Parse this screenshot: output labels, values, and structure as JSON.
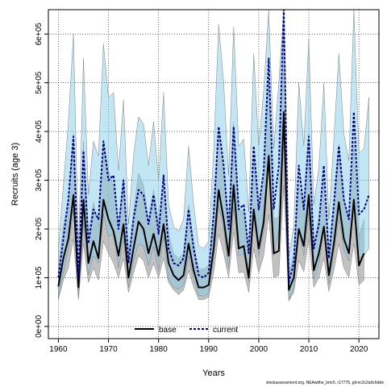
{
  "chart_data": {
    "type": "line",
    "title": "",
    "xlabel": "Years",
    "ylabel": "Recruits (age 3)",
    "xlim": [
      1958,
      2024
    ],
    "ylim": [
      -25000,
      650000
    ],
    "x_ticks": [
      1960,
      1970,
      1980,
      1990,
      2000,
      2010,
      2020
    ],
    "y_ticks": [
      0,
      100000,
      200000,
      300000,
      400000,
      500000,
      600000
    ],
    "y_tick_labels": [
      "0e+00",
      "1e+05",
      "2e+05",
      "3e+05",
      "4e+05",
      "5e+05",
      "6e+05"
    ],
    "grid": true,
    "legend": {
      "position": "bottom-center",
      "items": [
        "base",
        "current"
      ]
    },
    "source_note": "stockassessment.org, NEAwithe_bmr5, r17775, git:ec2c2a0c6dde",
    "x": [
      1960,
      1961,
      1962,
      1963,
      1964,
      1965,
      1966,
      1967,
      1968,
      1969,
      1970,
      1971,
      1972,
      1973,
      1974,
      1975,
      1976,
      1977,
      1978,
      1979,
      1980,
      1981,
      1982,
      1983,
      1984,
      1985,
      1986,
      1987,
      1988,
      1989,
      1990,
      1991,
      1992,
      1993,
      1994,
      1995,
      1996,
      1997,
      1998,
      1999,
      2000,
      2001,
      2002,
      2003,
      2004,
      2005,
      2006,
      2007,
      2008,
      2009,
      2010,
      2011,
      2012,
      2013,
      2014,
      2015,
      2016,
      2017,
      2018,
      2019,
      2020,
      2021,
      2022
    ],
    "series": [
      {
        "name": "base",
        "color": "#000000",
        "values": [
          82000,
          140000,
          180000,
          270000,
          80000,
          260000,
          130000,
          175000,
          140000,
          260000,
          220000,
          195000,
          145000,
          210000,
          100000,
          160000,
          215000,
          200000,
          150000,
          190000,
          145000,
          210000,
          130000,
          105000,
          95000,
          105000,
          170000,
          115000,
          80000,
          80000,
          85000,
          160000,
          280000,
          220000,
          145000,
          290000,
          160000,
          165000,
          100000,
          240000,
          160000,
          215000,
          350000,
          150000,
          155000,
          440000,
          75000,
          100000,
          200000,
          165000,
          270000,
          115000,
          150000,
          205000,
          105000,
          170000,
          255000,
          180000,
          150000,
          260000,
          125000,
          150000,
          null
        ],
        "lower": [
          55000,
          95000,
          120000,
          180000,
          55000,
          170000,
          90000,
          120000,
          95000,
          175000,
          150000,
          130000,
          100000,
          140000,
          70000,
          110000,
          145000,
          135000,
          100000,
          130000,
          100000,
          140000,
          90000,
          75000,
          65000,
          75000,
          115000,
          80000,
          55000,
          55000,
          60000,
          110000,
          190000,
          150000,
          100000,
          195000,
          110000,
          112000,
          70000,
          160000,
          110000,
          145000,
          230000,
          100000,
          105000,
          290000,
          52000,
          70000,
          135000,
          112000,
          180000,
          80000,
          100000,
          140000,
          72000,
          115000,
          170000,
          120000,
          100000,
          170000,
          85000,
          95000,
          null
        ],
        "upper": [
          120000,
          205000,
          265000,
          395000,
          120000,
          380000,
          190000,
          255000,
          205000,
          380000,
          320000,
          285000,
          210000,
          305000,
          148000,
          235000,
          315000,
          290000,
          220000,
          280000,
          210000,
          305000,
          190000,
          150000,
          140000,
          150000,
          250000,
          170000,
          118000,
          118000,
          125000,
          235000,
          410000,
          320000,
          210000,
          420000,
          235000,
          240000,
          148000,
          350000,
          235000,
          315000,
          510000,
          220000,
          225000,
          650000,
          110000,
          148000,
          290000,
          240000,
          395000,
          170000,
          220000,
          300000,
          155000,
          250000,
          375000,
          265000,
          220000,
          380000,
          185000,
          220000,
          null
        ]
      },
      {
        "name": "current",
        "color": "#00008b",
        "values": [
          100000,
          180000,
          260000,
          390000,
          100000,
          360000,
          170000,
          240000,
          220000,
          380000,
          300000,
          310000,
          200000,
          300000,
          130000,
          220000,
          280000,
          270000,
          210000,
          270000,
          190000,
          310000,
          160000,
          130000,
          125000,
          140000,
          240000,
          160000,
          105000,
          100000,
          110000,
          230000,
          410000,
          330000,
          200000,
          410000,
          240000,
          250000,
          150000,
          370000,
          240000,
          320000,
          550000,
          240000,
          330000,
          650000,
          90000,
          130000,
          330000,
          240000,
          390000,
          160000,
          210000,
          330000,
          140000,
          250000,
          370000,
          260000,
          220000,
          440000,
          230000,
          240000,
          270000
        ],
        "lower": [
          60000,
          110000,
          160000,
          240000,
          60000,
          215000,
          105000,
          145000,
          130000,
          230000,
          185000,
          190000,
          120000,
          180000,
          80000,
          135000,
          170000,
          165000,
          125000,
          165000,
          115000,
          185000,
          98000,
          80000,
          77000,
          85000,
          145000,
          98000,
          64000,
          62000,
          68000,
          140000,
          250000,
          200000,
          120000,
          245000,
          145000,
          150000,
          92000,
          225000,
          145000,
          195000,
          330000,
          145000,
          200000,
          400000,
          55000,
          80000,
          200000,
          145000,
          235000,
          97000,
          128000,
          200000,
          86000,
          152000,
          225000,
          158000,
          134000,
          265000,
          140000,
          145000,
          160000
        ],
        "upper": [
          160000,
          290000,
          420000,
          600000,
          160000,
          550000,
          270000,
          380000,
          350000,
          580000,
          470000,
          480000,
          320000,
          465000,
          210000,
          350000,
          430000,
          415000,
          330000,
          420000,
          300000,
          480000,
          250000,
          205000,
          195000,
          220000,
          370000,
          250000,
          165000,
          160000,
          175000,
          360000,
          620000,
          500000,
          310000,
          615000,
          370000,
          385000,
          235000,
          560000,
          370000,
          485000,
          650000,
          365000,
          500000,
          650000,
          145000,
          205000,
          500000,
          370000,
          590000,
          250000,
          325000,
          500000,
          220000,
          385000,
          560000,
          395000,
          340000,
          650000,
          355000,
          365000,
          470000
        ]
      }
    ]
  }
}
